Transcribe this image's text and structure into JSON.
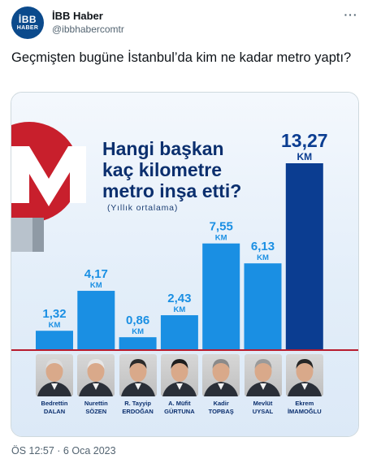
{
  "tweet": {
    "display_name": "İBB Haber",
    "handle": "@ibbhabercomtr",
    "avatar_line1": "İBB",
    "avatar_line2": "HABER",
    "text": "Geçmişten bugüne İstanbul’da kim ne kadar metro yaptı?",
    "timestamp": "ÖS 12:57 · 6 Oca 2023"
  },
  "infographic": {
    "headline_lines": [
      "Hangi başkan",
      "kaç kilometre",
      "metro inşa etti?"
    ],
    "subtitle": "(Yıllık ortalama)",
    "colors": {
      "bar": "#1a8fe3",
      "bar_highlight": "#0b3d91",
      "label": "#1a8fe3",
      "label_highlight": "#0b3d91",
      "baseline": "#b81c2e"
    }
  },
  "chart_data": {
    "type": "bar",
    "title": "Hangi başkan kaç kilometre metro inşa etti?",
    "subtitle": "(Yıllık ortalama)",
    "unit": "KM",
    "categories": [
      "Bedrettin DALAN",
      "Nurettin SÖZEN",
      "R. Tayyip ERDOĞAN",
      "A. Müfit GÜRTUNA",
      "Kadir TOPBAŞ",
      "Mevlüt UYSAL",
      "Ekrem İMAMOĞLU"
    ],
    "values": [
      1.32,
      4.17,
      0.86,
      2.43,
      7.55,
      6.13,
      13.27
    ],
    "value_labels": [
      "1,32",
      "4,17",
      "0,86",
      "2,43",
      "7,55",
      "6,13",
      "13,27"
    ],
    "ylim": [
      0,
      14
    ]
  },
  "people": [
    {
      "first": "Bedrettin",
      "last": "DALAN",
      "hair": "#dcdcdc"
    },
    {
      "first": "Nurettin",
      "last": "SÖZEN",
      "hair": "#e6e6e6"
    },
    {
      "first": "R. Tayyip",
      "last": "ERDOĞAN",
      "hair": "#2b2b2b"
    },
    {
      "first": "A. Müfit",
      "last": "GÜRTUNA",
      "hair": "#1e1e1e"
    },
    {
      "first": "Kadir",
      "last": "TOPBAŞ",
      "hair": "#8a8a8a"
    },
    {
      "first": "Mevlüt",
      "last": "UYSAL",
      "hair": "#9a9a9a"
    },
    {
      "first": "Ekrem",
      "last": "İMAMOĞLU",
      "hair": "#262626"
    }
  ]
}
